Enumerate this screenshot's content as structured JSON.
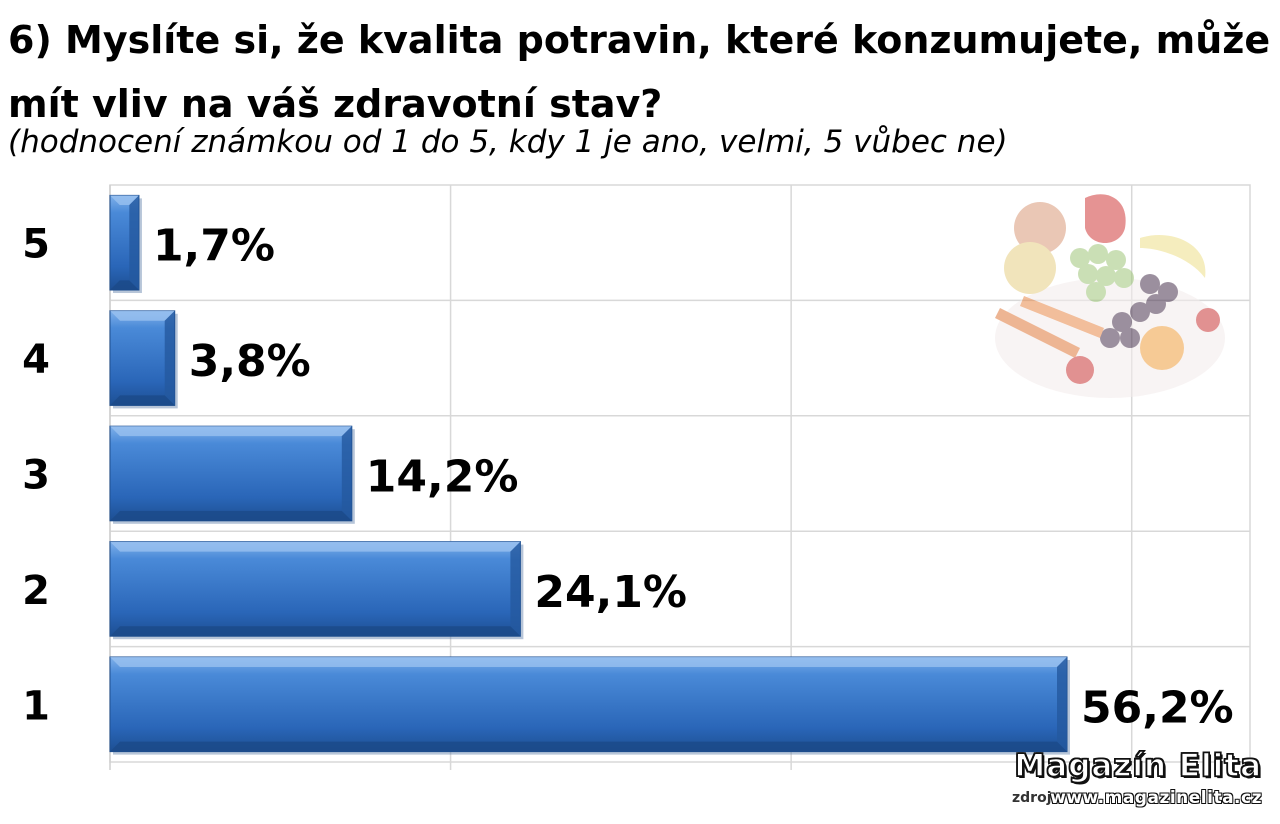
{
  "chart_data": {
    "type": "bar",
    "orientation": "horizontal",
    "title": "6) Myslíte si, že kvalita potravin, které konzumujete, může mít vliv na váš zdravotní stav?",
    "subtitle": "(hodnocení známkou od 1 do 5, kdy 1 je ano, velmi, 5 vůbec ne)",
    "categories": [
      "5",
      "4",
      "3",
      "2",
      "1"
    ],
    "values": [
      1.7,
      3.8,
      14.2,
      24.1,
      56.2
    ],
    "value_labels": [
      "1,7%",
      "3,8%",
      "14,2%",
      "24,1%",
      "56,2%"
    ],
    "xlim": [
      0,
      60
    ],
    "grid": true,
    "bar_color": "#3a78c8"
  },
  "decoration": {
    "fruit_image_icon": "fruit-vegetables-image",
    "logo_title": "Magazín Elita",
    "logo_url": "www.magazinelita.cz",
    "logo_under": "zdroj"
  }
}
